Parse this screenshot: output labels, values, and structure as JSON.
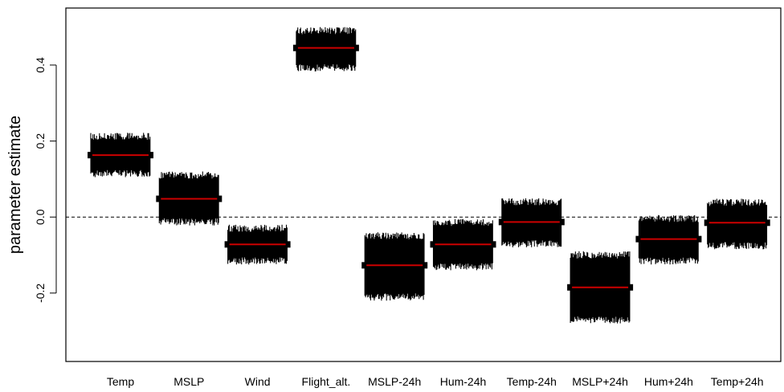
{
  "chart_data": {
    "type": "scatter",
    "title": "",
    "xlabel": "",
    "ylabel": "parameter estimate",
    "categories": [
      "Temp",
      "MSLP",
      "Wind",
      "Flight_alt.",
      "MSLP-24h",
      "Hum-24h",
      "Temp-24h",
      "MSLP+24h",
      "Hum+24h",
      "Temp+24h"
    ],
    "estimates": [
      0.163,
      0.048,
      -0.072,
      0.445,
      -0.127,
      -0.072,
      -0.013,
      -0.185,
      -0.058,
      -0.015
    ],
    "upper": [
      0.222,
      0.12,
      -0.02,
      0.5,
      -0.04,
      -0.005,
      0.05,
      -0.09,
      0.005,
      0.048
    ],
    "lower": [
      0.105,
      -0.022,
      -0.125,
      0.383,
      -0.22,
      -0.14,
      -0.08,
      -0.28,
      -0.125,
      -0.085
    ],
    "ylim": [
      -0.38,
      0.55
    ],
    "yticks": [
      -0.2,
      0.0,
      0.2,
      0.4
    ],
    "ytick_labels": [
      "-0.2",
      "0.0",
      "0.2",
      "0.4"
    ],
    "reference_line": 0,
    "grid": false,
    "colors": {
      "band": "#000000",
      "estimate": "#cc0000",
      "reference": "#000000"
    }
  }
}
